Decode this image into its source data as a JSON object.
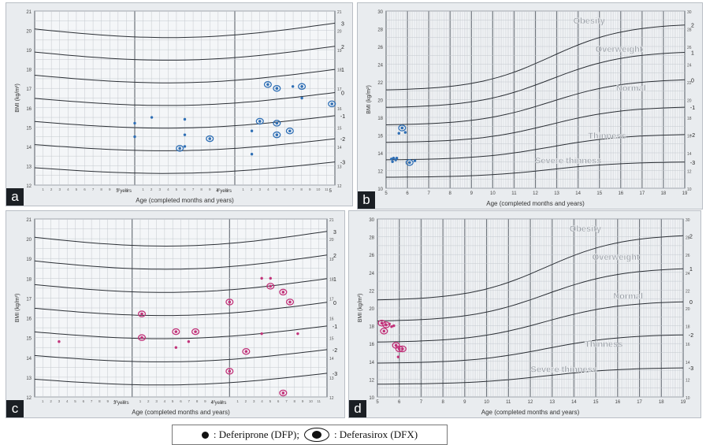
{
  "panels": [
    {
      "id": "a",
      "label": "a",
      "type": "scatter",
      "xlabel": "Age (completed months and years)",
      "ylabel": "BMI (kg/m²)",
      "x_range": [
        2,
        5
      ],
      "x_age_labels": [
        {
          "x": 3,
          "text": "3 years"
        },
        {
          "x": 4,
          "text": "4 years"
        },
        {
          "x": 5,
          "text": "5"
        }
      ],
      "y_range": [
        12,
        21
      ],
      "curve_labels": [
        "3",
        "2",
        "1",
        "0",
        "-1",
        "-2",
        "-3"
      ],
      "legend": [],
      "marker_color": "#2f6fb5",
      "points": [
        {
          "x": 3.0,
          "y": 15.2,
          "group": "DFP"
        },
        {
          "x": 3.0,
          "y": 14.5,
          "group": "DFP"
        },
        {
          "x": 3.17,
          "y": 15.5,
          "group": "DFP"
        },
        {
          "x": 3.5,
          "y": 15.4,
          "group": "DFP"
        },
        {
          "x": 3.5,
          "y": 14.6,
          "group": "DFP"
        },
        {
          "x": 3.5,
          "y": 14.0,
          "group": "DFP"
        },
        {
          "x": 3.45,
          "y": 13.9,
          "group": "DFX"
        },
        {
          "x": 3.75,
          "y": 14.4,
          "group": "DFX"
        },
        {
          "x": 4.17,
          "y": 14.8,
          "group": "DFP"
        },
        {
          "x": 4.17,
          "y": 13.6,
          "group": "DFP"
        },
        {
          "x": 4.25,
          "y": 15.3,
          "group": "DFX"
        },
        {
          "x": 4.33,
          "y": 17.2,
          "group": "DFX"
        },
        {
          "x": 4.42,
          "y": 17.0,
          "group": "DFX"
        },
        {
          "x": 4.42,
          "y": 15.2,
          "group": "DFX"
        },
        {
          "x": 4.42,
          "y": 14.6,
          "group": "DFX"
        },
        {
          "x": 4.55,
          "y": 14.8,
          "group": "DFX"
        },
        {
          "x": 4.58,
          "y": 17.1,
          "group": "DFP"
        },
        {
          "x": 4.67,
          "y": 17.1,
          "group": "DFX"
        },
        {
          "x": 4.67,
          "y": 16.5,
          "group": "DFP"
        },
        {
          "x": 4.97,
          "y": 16.2,
          "group": "DFX"
        }
      ]
    },
    {
      "id": "b",
      "label": "b",
      "type": "scatter",
      "xlabel": "Age (completed months and years)",
      "ylabel": "BMI (kg/m²)",
      "x_range": [
        5,
        19
      ],
      "x_age_labels": [],
      "y_range": [
        10,
        30
      ],
      "curve_labels": [
        "2",
        "1",
        "0",
        "-1",
        "-2",
        "-3"
      ],
      "legend": [
        "Obesity",
        "Overweight",
        "Normal",
        "Thinness",
        "Severe thinness"
      ],
      "marker_color": "#2f6fb5",
      "points": [
        {
          "x": 5.25,
          "y": 13.3,
          "group": "DFP"
        },
        {
          "x": 5.3,
          "y": 13.0,
          "group": "DFP"
        },
        {
          "x": 5.35,
          "y": 13.4,
          "group": "DFP"
        },
        {
          "x": 5.45,
          "y": 13.2,
          "group": "DFP"
        },
        {
          "x": 5.5,
          "y": 13.4,
          "group": "DFP"
        },
        {
          "x": 5.6,
          "y": 16.2,
          "group": "DFP"
        },
        {
          "x": 5.75,
          "y": 16.8,
          "group": "DFX"
        },
        {
          "x": 5.9,
          "y": 16.3,
          "group": "DFP"
        },
        {
          "x": 6.1,
          "y": 12.9,
          "group": "DFX"
        },
        {
          "x": 6.35,
          "y": 13.1,
          "group": "DFP"
        }
      ]
    },
    {
      "id": "c",
      "label": "c",
      "type": "scatter",
      "xlabel": "Age (completed months and years)",
      "ylabel": "BMI (kg/m²)",
      "x_range": [
        2,
        5
      ],
      "x_age_labels": [
        {
          "x": 3,
          "text": "3 years"
        },
        {
          "x": 4,
          "text": "4 years"
        }
      ],
      "y_range": [
        12,
        21
      ],
      "curve_labels": [
        "3",
        "2",
        "1",
        "0",
        "-1",
        "-2",
        "-3"
      ],
      "legend": [],
      "marker_color": "#c2337a",
      "points": [
        {
          "x": 2.25,
          "y": 14.8,
          "group": "DFP"
        },
        {
          "x": 3.1,
          "y": 16.2,
          "group": "DFX"
        },
        {
          "x": 3.1,
          "y": 15.0,
          "group": "DFX"
        },
        {
          "x": 3.45,
          "y": 15.3,
          "group": "DFX"
        },
        {
          "x": 3.45,
          "y": 14.5,
          "group": "DFP"
        },
        {
          "x": 3.58,
          "y": 14.8,
          "group": "DFP"
        },
        {
          "x": 3.65,
          "y": 15.3,
          "group": "DFX"
        },
        {
          "x": 4.0,
          "y": 16.8,
          "group": "DFX"
        },
        {
          "x": 4.0,
          "y": 13.3,
          "group": "DFX"
        },
        {
          "x": 4.17,
          "y": 14.3,
          "group": "DFX"
        },
        {
          "x": 4.33,
          "y": 18.0,
          "group": "DFP"
        },
        {
          "x": 4.33,
          "y": 15.2,
          "group": "DFP"
        },
        {
          "x": 4.42,
          "y": 18.0,
          "group": "DFP"
        },
        {
          "x": 4.42,
          "y": 17.6,
          "group": "DFX"
        },
        {
          "x": 4.55,
          "y": 17.3,
          "group": "DFX"
        },
        {
          "x": 4.62,
          "y": 16.8,
          "group": "DFX"
        },
        {
          "x": 4.55,
          "y": 12.2,
          "group": "DFX"
        },
        {
          "x": 4.7,
          "y": 15.2,
          "group": "DFP"
        }
      ]
    },
    {
      "id": "d",
      "label": "d",
      "type": "scatter",
      "xlabel": "Age (completed months and years)",
      "ylabel": "BMI (kg/m²)",
      "x_range": [
        5,
        19
      ],
      "x_age_labels": [],
      "y_range": [
        10,
        30
      ],
      "curve_labels": [
        "2",
        "1",
        "0",
        "-2",
        "-3"
      ],
      "legend": [
        "Obesity",
        "Overweight",
        "Normal",
        "Thinness",
        "Severe thinness"
      ],
      "marker_color": "#c2337a",
      "points": [
        {
          "x": 5.2,
          "y": 18.3,
          "group": "DFX"
        },
        {
          "x": 5.3,
          "y": 17.4,
          "group": "DFX"
        },
        {
          "x": 5.4,
          "y": 18.1,
          "group": "DFX"
        },
        {
          "x": 5.55,
          "y": 18.2,
          "group": "DFP"
        },
        {
          "x": 5.65,
          "y": 17.9,
          "group": "DFP"
        },
        {
          "x": 5.75,
          "y": 18.0,
          "group": "DFP"
        },
        {
          "x": 5.85,
          "y": 15.8,
          "group": "DFX"
        },
        {
          "x": 6.0,
          "y": 15.4,
          "group": "DFX"
        },
        {
          "x": 5.95,
          "y": 14.5,
          "group": "DFP"
        },
        {
          "x": 6.15,
          "y": 15.4,
          "group": "DFX"
        }
      ]
    }
  ],
  "legend_box": {
    "dfp_text": ": Deferiprone  (DFP);",
    "dfx_text": ": Deferasirox  (DFX)"
  }
}
